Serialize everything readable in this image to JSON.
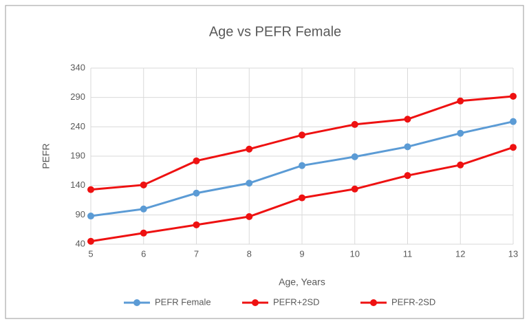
{
  "chart_data": {
    "type": "line",
    "title": "Age vs PEFR Female",
    "x_label": "Age, Years",
    "y_label": "PEFR",
    "x": [
      5,
      6,
      7,
      8,
      9,
      10,
      11,
      12,
      13
    ],
    "series": [
      {
        "name": "PEFR Female",
        "color": "#5b9bd5",
        "values": [
          88,
          100,
          127,
          144,
          174,
          189,
          206,
          229,
          249
        ]
      },
      {
        "name": "PEFR+2SD",
        "color": "#ee1111",
        "values": [
          133,
          141,
          182,
          202,
          226,
          244,
          253,
          284,
          292
        ]
      },
      {
        "name": "PEFR-2SD",
        "color": "#ee1111",
        "values": [
          45,
          59,
          73,
          87,
          119,
          134,
          157,
          175,
          205
        ]
      }
    ],
    "xlim": [
      5,
      13
    ],
    "xticks": [
      5,
      6,
      7,
      8,
      9,
      10,
      11,
      12,
      13
    ],
    "ylim": [
      40,
      340
    ],
    "yticks": [
      40,
      90,
      140,
      190,
      240,
      290,
      340
    ],
    "grid": true,
    "legend": "bottom"
  }
}
